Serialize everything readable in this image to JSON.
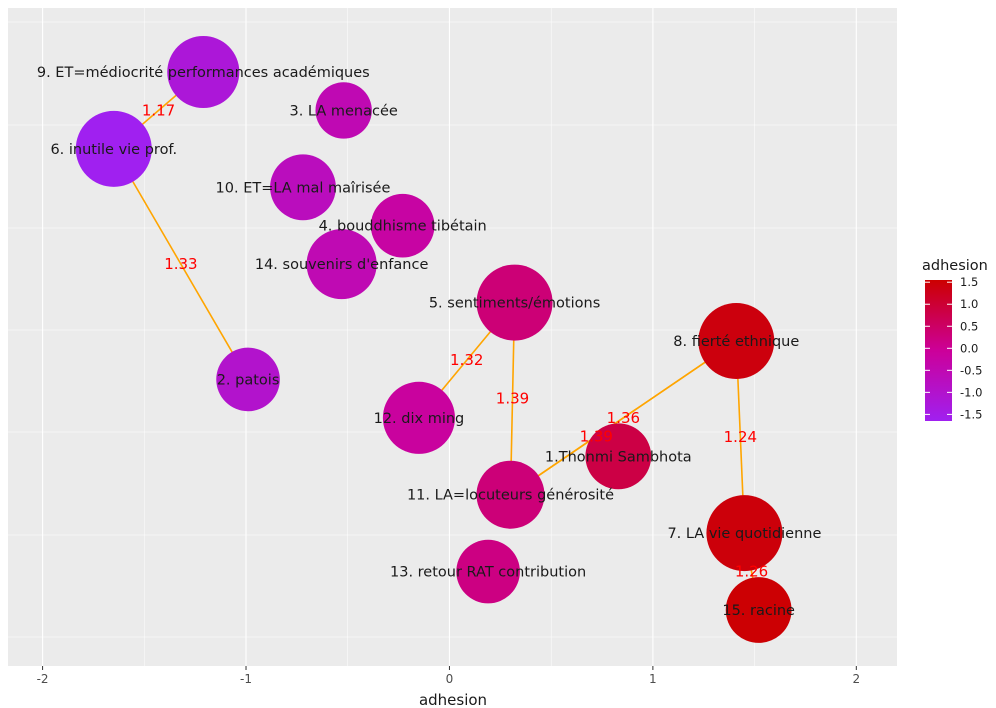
{
  "chart_data": {
    "type": "scatter",
    "title": "",
    "xlabel": "adhesion",
    "ylabel": "",
    "xlim": [
      -2.17,
      2.2
    ],
    "x_ticks": [
      "-2",
      "-1",
      "0",
      "1",
      "2"
    ],
    "x_tick_values": [
      -2,
      -1,
      0,
      1,
      2
    ],
    "grid": true,
    "legend": {
      "title": "adhesion",
      "placement": "right",
      "ticks": [
        "1.5",
        "1.0",
        "0.5",
        "0.0",
        "-0.5",
        "-1.0",
        "-1.5"
      ],
      "tick_values": [
        1.5,
        1.0,
        0.5,
        0.0,
        -0.5,
        -1.0,
        -1.5
      ],
      "range": [
        -1.65,
        1.55
      ],
      "colors": [
        "#a020f0",
        "#cc0099",
        "#cc0000"
      ]
    },
    "points": [
      {
        "id": 9,
        "label": "9. ET=médiocrité performances académiques",
        "x": -1.21,
        "size": 0.9,
        "y_rank": 1
      },
      {
        "id": 3,
        "label": "3. LA menacée",
        "x": -0.52,
        "size": 0.55,
        "y_rank": 2
      },
      {
        "id": 6,
        "label": "6. inutile vie prof.",
        "x": -1.65,
        "size": 1.0,
        "y_rank": 3
      },
      {
        "id": 10,
        "label": "10. ET=LA  mal maîrisée",
        "x": -0.72,
        "size": 0.75,
        "y_rank": 4
      },
      {
        "id": 4,
        "label": "4. bouddhisme tibétain",
        "x": -0.23,
        "size": 0.7,
        "y_rank": 5
      },
      {
        "id": 14,
        "label": "14. souvenirs d'enfance",
        "x": -0.53,
        "size": 0.85,
        "y_rank": 6
      },
      {
        "id": 5,
        "label": "5. sentiments/émotions",
        "x": 0.32,
        "size": 1.0,
        "y_rank": 7
      },
      {
        "id": 8,
        "label": "8. fierté ethnique",
        "x": 1.41,
        "size": 1.0,
        "y_rank": 8
      },
      {
        "id": 2,
        "label": "2. patois",
        "x": -0.99,
        "size": 0.7,
        "y_rank": 9
      },
      {
        "id": 12,
        "label": "12. dix ming",
        "x": -0.15,
        "size": 0.9,
        "y_rank": 10
      },
      {
        "id": 1,
        "label": "1.Thonmi Sambhota",
        "x": 0.83,
        "size": 0.75,
        "y_rank": 11
      },
      {
        "id": 11,
        "label": "11. LA=locuteurs générosité",
        "x": 0.3,
        "size": 0.8,
        "y_rank": 12
      },
      {
        "id": 7,
        "label": "7. LA vie quotidienne",
        "x": 1.45,
        "size": 1.0,
        "y_rank": 13
      },
      {
        "id": 13,
        "label": "13. retour RAT contribution",
        "x": 0.19,
        "size": 0.7,
        "y_rank": 14
      },
      {
        "id": 15,
        "label": "15. racine",
        "x": 1.52,
        "size": 0.75,
        "y_rank": 15
      }
    ],
    "edges": [
      {
        "from": 9,
        "to": 6,
        "label": "1.17"
      },
      {
        "from": 6,
        "to": 2,
        "label": "1.33"
      },
      {
        "from": 12,
        "to": 5,
        "label": "1.32"
      },
      {
        "from": 5,
        "to": 11,
        "label": "1.39"
      },
      {
        "from": 11,
        "to": 8,
        "label": "1.36"
      },
      {
        "from": 8,
        "to": 11,
        "label": "1.39"
      },
      {
        "from": 8,
        "to": 7,
        "label": "1.24"
      },
      {
        "from": 7,
        "to": 15,
        "label": "1.26"
      }
    ],
    "edge_color": "#ffa500",
    "edge_label_color": "#ff0000"
  }
}
